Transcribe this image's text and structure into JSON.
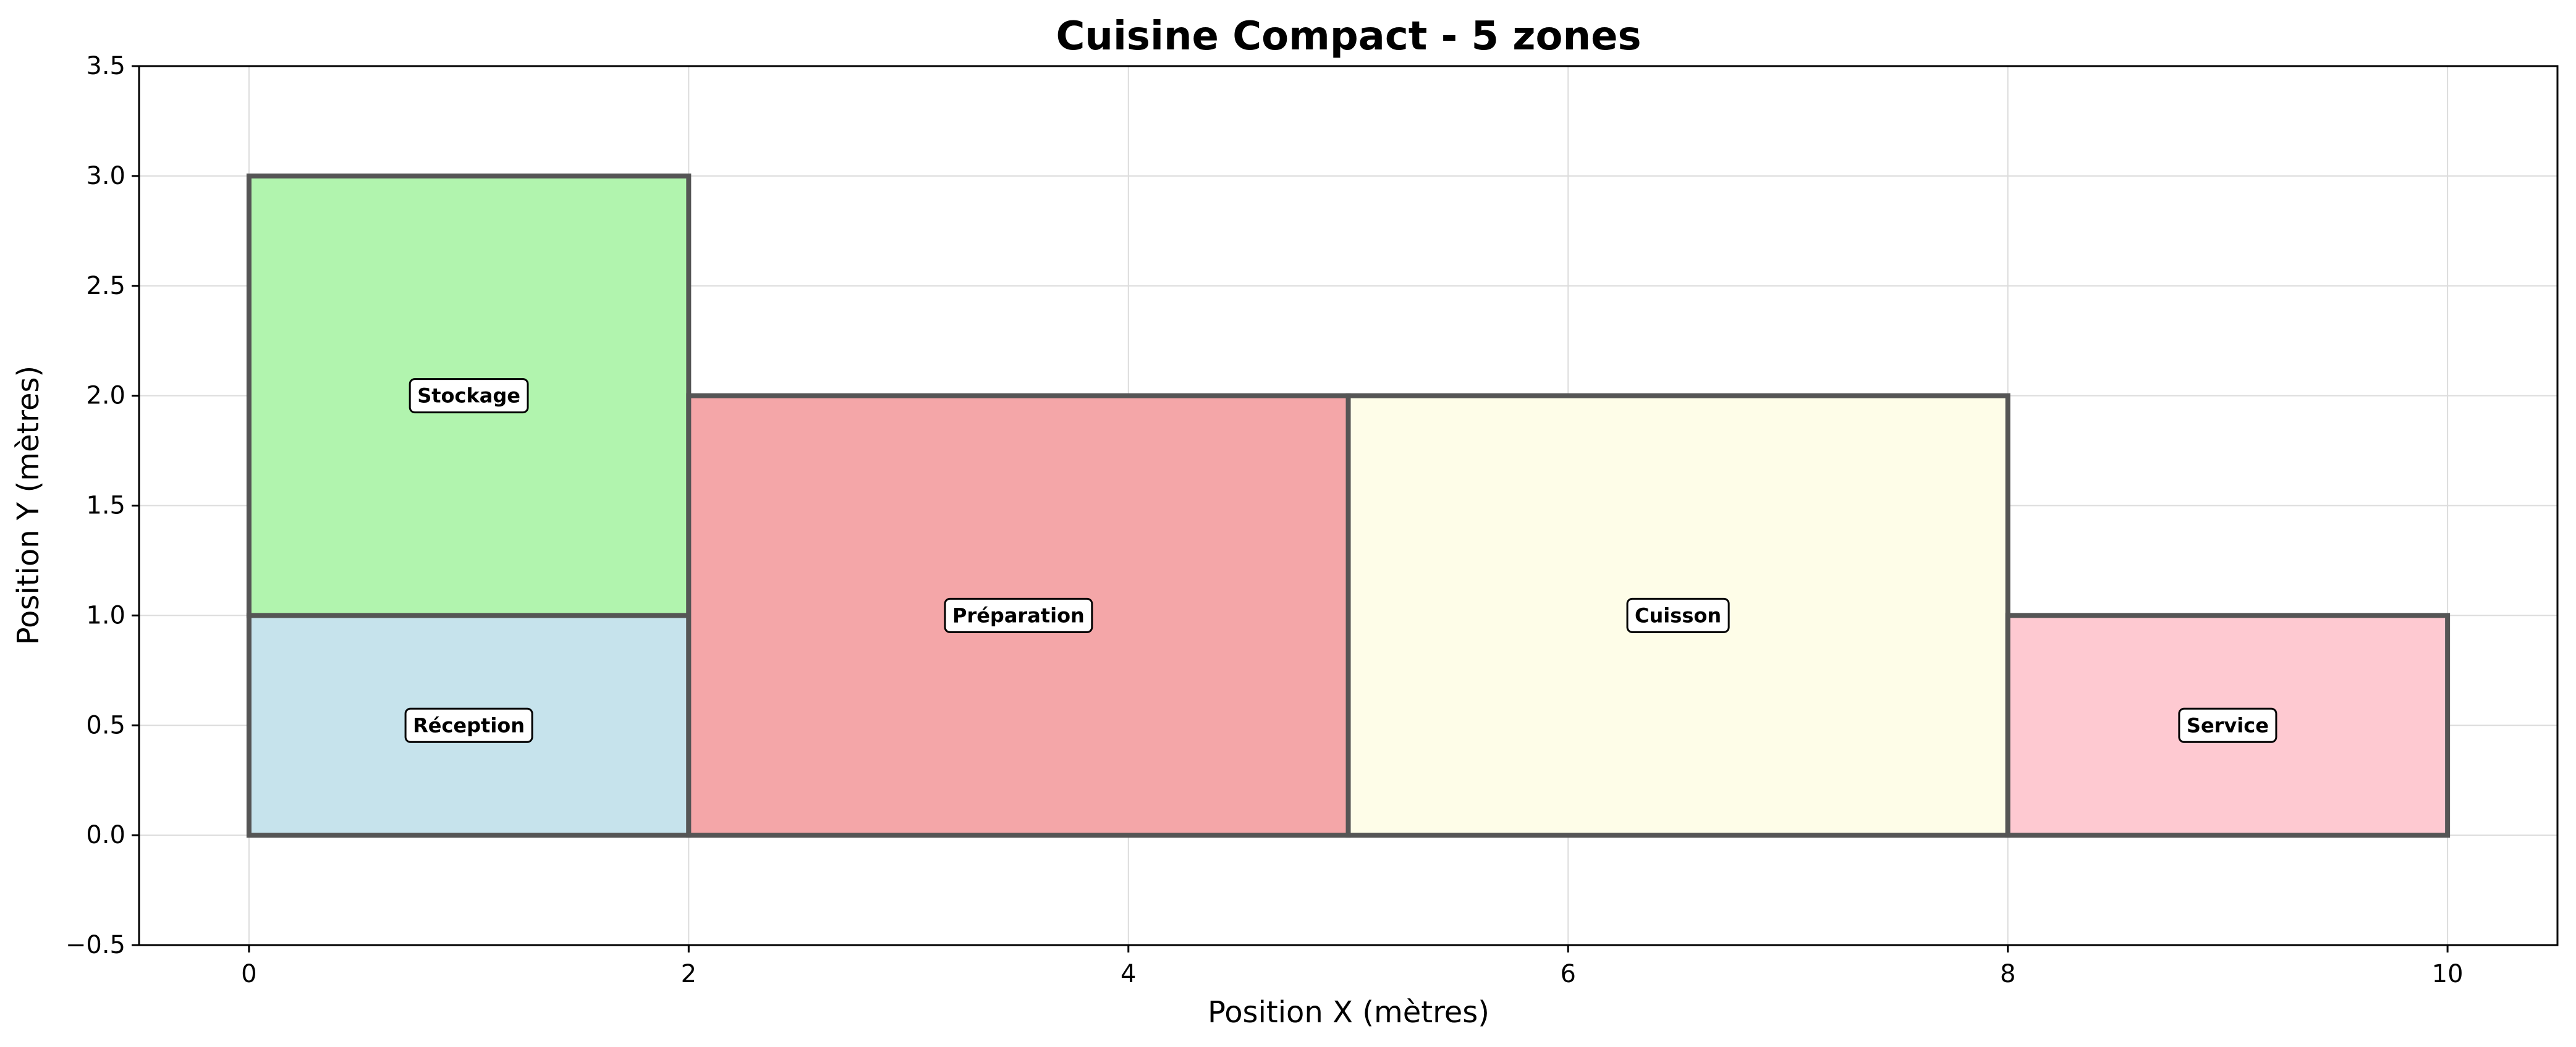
{
  "chart_data": {
    "type": "rectangles",
    "title": "Cuisine Compact - 5 zones",
    "xlabel": "Position X (mètres)",
    "ylabel": "Position Y (mètres)",
    "xlim": [
      -0.5,
      10.5
    ],
    "ylim": [
      -0.5,
      3.5
    ],
    "xticks": [
      0,
      2,
      4,
      6,
      8,
      10
    ],
    "xtick_labels": [
      "0",
      "2",
      "4",
      "6",
      "8",
      "10"
    ],
    "yticks": [
      -0.5,
      0.0,
      0.5,
      1.0,
      1.5,
      2.0,
      2.5,
      3.0,
      3.5
    ],
    "ytick_labels": [
      "−0.5",
      "0.0",
      "0.5",
      "1.0",
      "1.5",
      "2.0",
      "2.5",
      "3.0",
      "3.5"
    ],
    "grid": true,
    "zones": [
      {
        "name": "Réception",
        "x": 0,
        "y": 0,
        "width": 2,
        "height": 1,
        "color": "#c6e3ec"
      },
      {
        "name": "Stockage",
        "x": 0,
        "y": 1,
        "width": 2,
        "height": 2,
        "color": "#b1f4ae"
      },
      {
        "name": "Préparation",
        "x": 2,
        "y": 0,
        "width": 3,
        "height": 2,
        "color": "#f4a6a8"
      },
      {
        "name": "Cuisson",
        "x": 5,
        "y": 0,
        "width": 3,
        "height": 2,
        "color": "#fefde8"
      },
      {
        "name": "Service",
        "x": 8,
        "y": 0,
        "width": 2,
        "height": 1,
        "color": "#fec9d1"
      }
    ],
    "edge_color": "#555555"
  }
}
